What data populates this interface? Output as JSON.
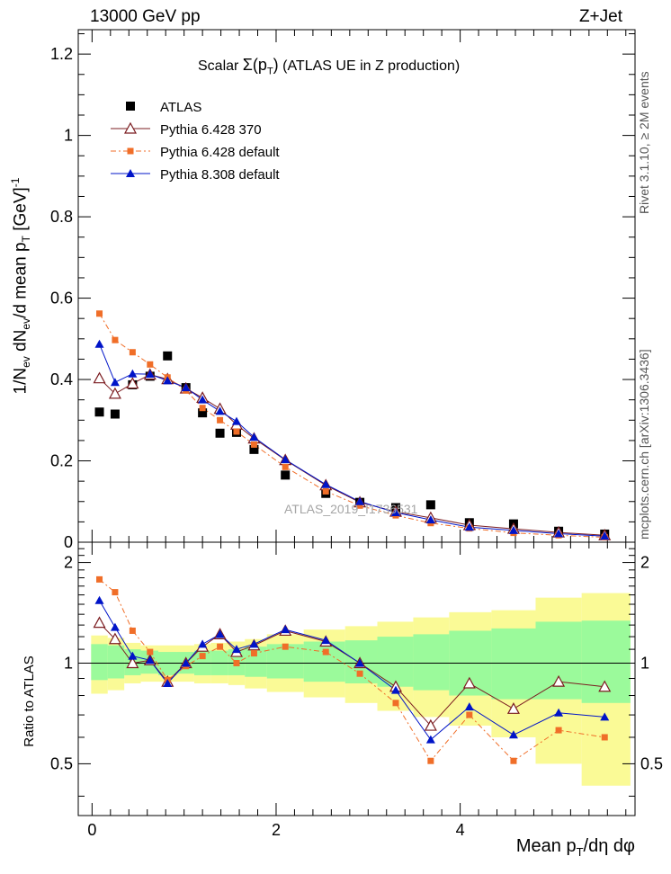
{
  "header": {
    "left": "13000 GeV pp",
    "right": "Z+Jet"
  },
  "side": {
    "rivet": "Rivet 3.1.10, ≥ 2M events",
    "mcplots": "mcplots.cern.ch [arXiv:1306.3436]"
  },
  "chart_data": {
    "type": "scatter",
    "title": "Scalar Σ(p_T) (ATLAS UE in Z production)",
    "watermark": "ATLAS_2019_I1736531",
    "xlabel": "Mean p_T/dη dφ",
    "ylabel": "1/N_ev dN_ev/d mean p_T [GeV]^-1",
    "ratio_ylabel": "Ratio to ATLAS",
    "xlim": [
      -0.15,
      5.9
    ],
    "ylim": [
      0,
      1.26
    ],
    "ratio_ylim": [
      0.35,
      2.3
    ],
    "x_ticks": [
      0,
      2,
      4
    ],
    "y_ticks": [
      0,
      0.2,
      0.4,
      0.6,
      0.8,
      1,
      1.2
    ],
    "y_tick_labels": [
      "0",
      "0.2",
      "0.4",
      "0.6",
      "0.8",
      "1",
      "1.2"
    ],
    "ratio_ticks": [
      0.5,
      1,
      2
    ],
    "ratio_tick_labels": [
      "0.5",
      "1",
      "2"
    ],
    "x": [
      0.08,
      0.25,
      0.44,
      0.63,
      0.82,
      1.02,
      1.2,
      1.39,
      1.57,
      1.76,
      2.1,
      2.54,
      2.91,
      3.3,
      3.68,
      4.1,
      4.58,
      5.07,
      5.57
    ],
    "series": [
      {
        "name": "ATLAS",
        "marker": "square",
        "color": "#000000",
        "values": [
          0.32,
          0.315,
          0.387,
          0.408,
          0.458,
          0.38,
          0.318,
          0.268,
          0.27,
          0.228,
          0.165,
          0.12,
          0.098,
          0.085,
          0.092,
          0.048,
          0.045,
          0.027,
          0.02
        ]
      },
      {
        "name": "Pythia 6.428 370",
        "marker": "triangle-open",
        "color": "#7b1c20",
        "dash": "",
        "values": [
          0.403,
          0.365,
          0.39,
          0.412,
          0.401,
          0.378,
          0.355,
          0.328,
          0.289,
          0.255,
          0.202,
          0.14,
          0.098,
          0.075,
          0.06,
          0.042,
          0.033,
          0.024,
          0.017
        ],
        "ratio": [
          1.32,
          1.18,
          1.0,
          1.02,
          0.88,
          1.0,
          1.12,
          1.22,
          1.08,
          1.13,
          1.25,
          1.16,
          1.0,
          0.85,
          0.65,
          0.87,
          0.73,
          0.88,
          0.85
        ]
      },
      {
        "name": "Pythia 6.428 default",
        "marker": "square-small",
        "color": "#f06e28",
        "dash": "6,3,2,3",
        "values": [
          0.562,
          0.497,
          0.467,
          0.437,
          0.405,
          0.373,
          0.33,
          0.3,
          0.272,
          0.24,
          0.185,
          0.125,
          0.09,
          0.066,
          0.047,
          0.034,
          0.023,
          0.017,
          0.012
        ],
        "ratio": [
          1.78,
          1.63,
          1.25,
          1.08,
          0.89,
          0.98,
          1.05,
          1.12,
          1.0,
          1.07,
          1.12,
          1.08,
          0.93,
          0.76,
          0.51,
          0.7,
          0.51,
          0.63,
          0.6
        ]
      },
      {
        "name": "Pythia 8.308 default",
        "marker": "triangle",
        "color": "#0014c8",
        "dash": "",
        "values": [
          0.487,
          0.393,
          0.414,
          0.413,
          0.397,
          0.38,
          0.35,
          0.322,
          0.297,
          0.258,
          0.203,
          0.142,
          0.1,
          0.073,
          0.055,
          0.037,
          0.029,
          0.021,
          0.015
        ],
        "ratio": [
          1.54,
          1.28,
          1.05,
          1.02,
          0.87,
          1.0,
          1.14,
          1.22,
          1.1,
          1.14,
          1.26,
          1.17,
          1.0,
          0.83,
          0.59,
          0.74,
          0.61,
          0.71,
          0.69
        ]
      }
    ],
    "band_inner": [
      [
        0.89,
        1.14
      ],
      [
        0.9,
        1.13
      ],
      [
        0.92,
        1.1
      ],
      [
        0.93,
        1.09
      ],
      [
        0.92,
        1.08
      ],
      [
        0.93,
        1.08
      ],
      [
        0.92,
        1.09
      ],
      [
        0.92,
        1.09
      ],
      [
        0.92,
        1.1
      ],
      [
        0.91,
        1.12
      ],
      [
        0.9,
        1.14
      ],
      [
        0.88,
        1.16
      ],
      [
        0.87,
        1.17
      ],
      [
        0.85,
        1.2
      ],
      [
        0.83,
        1.22
      ],
      [
        0.8,
        1.25
      ],
      [
        0.78,
        1.27
      ],
      [
        0.78,
        1.33
      ],
      [
        0.76,
        1.34
      ]
    ],
    "band_outer": [
      [
        0.81,
        1.21
      ],
      [
        0.83,
        1.19
      ],
      [
        0.87,
        1.15
      ],
      [
        0.88,
        1.13
      ],
      [
        0.88,
        1.13
      ],
      [
        0.88,
        1.13
      ],
      [
        0.87,
        1.14
      ],
      [
        0.87,
        1.15
      ],
      [
        0.86,
        1.16
      ],
      [
        0.84,
        1.18
      ],
      [
        0.82,
        1.22
      ],
      [
        0.79,
        1.26
      ],
      [
        0.76,
        1.29
      ],
      [
        0.72,
        1.33
      ],
      [
        0.69,
        1.37
      ],
      [
        0.65,
        1.42
      ],
      [
        0.6,
        1.44
      ],
      [
        0.5,
        1.57
      ],
      [
        0.43,
        1.62
      ]
    ],
    "band_edges": [
      -0.01,
      0.17,
      0.35,
      0.53,
      0.72,
      0.92,
      1.11,
      1.29,
      1.48,
      1.66,
      1.9,
      2.3,
      2.75,
      3.1,
      3.49,
      3.88,
      4.34,
      4.82,
      5.32,
      5.85
    ],
    "band_colors": {
      "inner": "#9bfa9b",
      "outer": "#fafa96"
    },
    "legend_position": "top-left"
  }
}
